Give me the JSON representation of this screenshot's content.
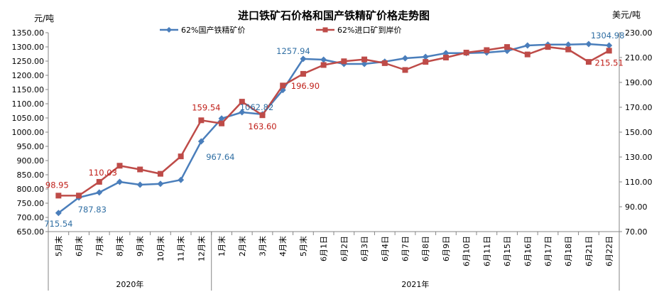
{
  "chart_data": {
    "type": "line",
    "title": "进口铁矿石价格和国产铁精矿价格走势图",
    "ylabel_left": "元/吨",
    "ylabel_right": "美元/吨",
    "ylim_left": [
      650,
      1350
    ],
    "ylim_right": [
      70,
      230
    ],
    "yticks_left": [
      "650.00",
      "700.00",
      "750.00",
      "800.00",
      "850.00",
      "900.00",
      "950.00",
      "1000.00",
      "1050.00",
      "1100.00",
      "1150.00",
      "1200.00",
      "1250.00",
      "1300.00",
      "1350.00"
    ],
    "yticks_right": [
      "70.00",
      "90.00",
      "110.00",
      "130.00",
      "150.00",
      "170.00",
      "190.00",
      "210.00",
      "230.00"
    ],
    "categories": [
      "5月末",
      "6月末",
      "7月末",
      "8月末",
      "9月末",
      "10月末",
      "11月末",
      "12月末",
      "1月末",
      "2月末",
      "3月末",
      "4月末",
      "5月末",
      "6月1日",
      "6月2日",
      "6月3日",
      "6月4日",
      "6月7日",
      "6月8日",
      "6月9日",
      "6月10日",
      "6月11日",
      "6月15日",
      "6月16日",
      "6月17日",
      "6月18日",
      "6月21日",
      "6月22日"
    ],
    "groups": [
      {
        "label": "2020年",
        "start": 0,
        "end": 7
      },
      {
        "label": "2021年",
        "start": 8,
        "end": 27
      }
    ],
    "series": [
      {
        "name": "62%国产铁精矿价",
        "axis": "left",
        "color": "#4a7ebb",
        "marker": "diamond",
        "values": [
          715.54,
          770,
          787.83,
          825,
          815,
          818,
          832,
          967.64,
          1048,
          1070,
          1062.82,
          1148,
          1257.94,
          1255,
          1240,
          1240,
          1248,
          1260,
          1265,
          1278,
          1278,
          1280,
          1286,
          1305,
          1308,
          1308,
          1310,
          1304.98
        ],
        "labels": [
          {
            "index": 0,
            "text": "715.54"
          },
          {
            "index": 2,
            "text": "787.83"
          },
          {
            "index": 7,
            "text": "967.64"
          },
          {
            "index": 10,
            "text": "1062.82"
          },
          {
            "index": 12,
            "text": "1257.94"
          },
          {
            "index": 27,
            "text": "1304.98"
          }
        ]
      },
      {
        "name": "62%进口矿到岸价",
        "axis": "right",
        "color": "#be4b48",
        "marker": "square",
        "values": [
          98.95,
          99,
          110.03,
          123,
          120,
          116.5,
          130.5,
          159.54,
          157,
          174.5,
          163.6,
          187.5,
          196.9,
          204,
          207,
          208.5,
          205.5,
          200,
          206.5,
          210,
          214,
          216,
          218.5,
          212.5,
          218.5,
          216.5,
          206.5,
          215.51
        ],
        "labels": [
          {
            "index": 0,
            "text": "98.95"
          },
          {
            "index": 2,
            "text": "110.03"
          },
          {
            "index": 7,
            "text": "159.54"
          },
          {
            "index": 10,
            "text": "163.60"
          },
          {
            "index": 12,
            "text": "196.90"
          },
          {
            "index": 27,
            "text": "215.51"
          }
        ]
      }
    ],
    "legend_position": "top",
    "grid": false
  }
}
